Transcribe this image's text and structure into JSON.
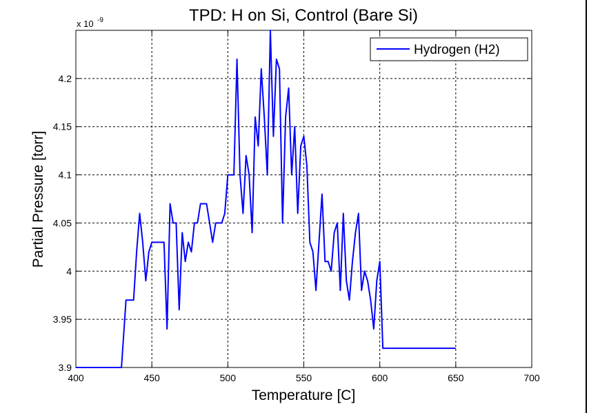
{
  "chart_data": {
    "type": "line",
    "title": "TPD: H on Si, Control (Bare Si)",
    "xlabel": "Temperature [C]",
    "ylabel": "Partial Pressure [torr]",
    "y_exponent_base": "x 10",
    "y_exponent_power": "-9",
    "xlim": [
      400,
      700
    ],
    "ylim": [
      3.9,
      4.25
    ],
    "xticks": [
      400,
      450,
      500,
      550,
      600,
      650,
      700
    ],
    "xtick_labels": [
      "400",
      "450",
      "500",
      "550",
      "600",
      "650",
      "700"
    ],
    "yticks": [
      3.9,
      3.95,
      4.0,
      4.05,
      4.1,
      4.15,
      4.2
    ],
    "ytick_labels": [
      "3.9",
      "3.95",
      "4",
      "4.05",
      "4.1",
      "4.15",
      "4.2"
    ],
    "grid": true,
    "legend_position": "top-right",
    "series": [
      {
        "name": "Hydrogen (H2)",
        "color": "#0000ff",
        "x": [
          400,
          430,
          433,
          436,
          438,
          440,
          442,
          444,
          446,
          448,
          450,
          452,
          454,
          456,
          458,
          460,
          462,
          464,
          466,
          468,
          470,
          472,
          474,
          476,
          478,
          480,
          482,
          484,
          486,
          488,
          490,
          492,
          494,
          496,
          498,
          500,
          502,
          504,
          506,
          508,
          510,
          512,
          514,
          516,
          518,
          520,
          522,
          524,
          526,
          528,
          530,
          532,
          534,
          536,
          538,
          540,
          542,
          544,
          546,
          548,
          550,
          552,
          554,
          556,
          558,
          560,
          562,
          564,
          566,
          568,
          570,
          572,
          574,
          576,
          578,
          580,
          582,
          584,
          586,
          588,
          590,
          592,
          594,
          596,
          598,
          600,
          602,
          604,
          606,
          608,
          610,
          612,
          614,
          616,
          618,
          620,
          622,
          624,
          626,
          628,
          630,
          632,
          634,
          636,
          638,
          640,
          642,
          644,
          646,
          648,
          650
        ],
        "y": [
          3.9,
          3.9,
          3.97,
          3.97,
          3.97,
          4.02,
          4.06,
          4.03,
          3.99,
          4.02,
          4.03,
          4.03,
          4.03,
          4.03,
          4.03,
          3.94,
          4.07,
          4.05,
          4.05,
          3.96,
          4.04,
          4.01,
          4.03,
          4.02,
          4.05,
          4.05,
          4.07,
          4.07,
          4.07,
          4.05,
          4.03,
          4.05,
          4.05,
          4.05,
          4.06,
          4.1,
          4.1,
          4.1,
          4.22,
          4.1,
          4.06,
          4.12,
          4.1,
          4.04,
          4.16,
          4.13,
          4.21,
          4.16,
          4.1,
          4.25,
          4.14,
          4.22,
          4.21,
          4.05,
          4.16,
          4.19,
          4.1,
          4.15,
          4.06,
          4.13,
          4.14,
          4.11,
          4.03,
          4.02,
          3.98,
          4.03,
          4.08,
          4.01,
          4.01,
          4.0,
          4.04,
          4.05,
          3.98,
          4.06,
          3.99,
          3.97,
          4.01,
          4.04,
          4.06,
          3.98,
          4.0,
          3.99,
          3.97,
          3.94,
          3.99,
          4.01,
          3.92,
          3.92,
          3.92,
          3.92,
          3.92,
          3.92,
          3.92,
          3.92,
          3.92,
          3.92,
          3.92,
          3.92,
          3.92,
          3.92,
          3.92,
          3.92,
          3.92,
          3.92,
          3.92,
          3.92,
          3.92,
          3.92,
          3.92,
          3.92,
          3.92
        ]
      }
    ]
  }
}
